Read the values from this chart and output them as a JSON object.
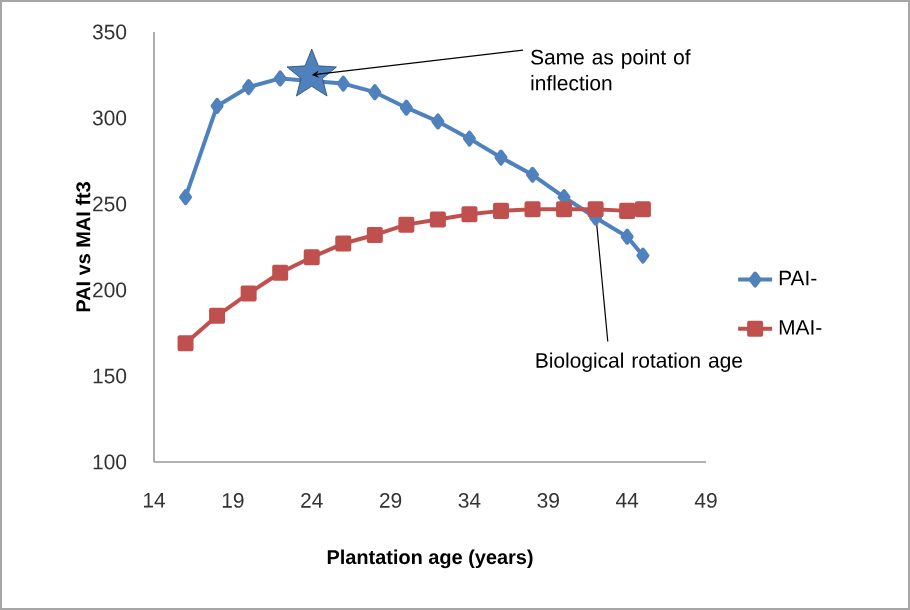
{
  "chart_data": {
    "type": "line",
    "xlabel": "Plantation age (years)",
    "ylabel": "PAI vs MAI ft3",
    "x": [
      16,
      18,
      20,
      22,
      24,
      26,
      28,
      30,
      32,
      34,
      36,
      38,
      40,
      42,
      44,
      45
    ],
    "series": [
      {
        "name": "PAI-",
        "color": "#4f81bd",
        "marker": "diamond",
        "values": [
          254,
          307,
          318,
          323,
          null,
          320,
          315,
          306,
          298,
          288,
          277,
          267,
          254,
          242,
          231,
          220
        ]
      },
      {
        "name": "MAI-",
        "color": "#c0504d",
        "marker": "square",
        "values": [
          169,
          185,
          198,
          210,
          219,
          227,
          232,
          238,
          241,
          244,
          246,
          247,
          247,
          247,
          246,
          247
        ]
      }
    ],
    "xlim": [
      14,
      49
    ],
    "ylim": [
      100,
      350
    ],
    "xticks": [
      14,
      19,
      24,
      29,
      34,
      39,
      44,
      49
    ],
    "yticks": [
      100,
      150,
      200,
      250,
      300,
      350
    ],
    "legend": "right",
    "grid": false,
    "line_style": "solid",
    "annotations": [
      {
        "text": "Same as point of inflection",
        "x": 24,
        "y": 325
      },
      {
        "text": "Biological rotation age",
        "x": 42,
        "y": 245
      }
    ]
  }
}
